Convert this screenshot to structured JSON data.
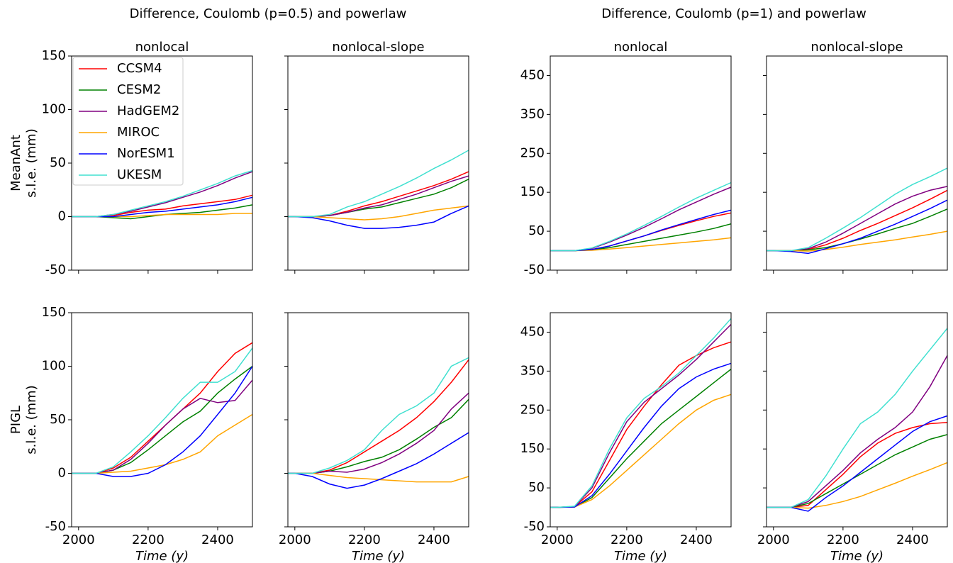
{
  "suptitles": [
    "Difference, Coulomb (p=0.5) and powerlaw",
    "Difference, Coulomb (p=1) and powerlaw"
  ],
  "chart_data": [
    {
      "type": "line",
      "title": "nonlocal",
      "ylabel": [
        "MeanAnt",
        "s.l.e. (mm)"
      ],
      "legend": "upper left",
      "x": [
        1980,
        2000,
        2050,
        2100,
        2150,
        2200,
        2250,
        2300,
        2350,
        2400,
        2450,
        2500
      ],
      "xlim": [
        1980,
        2500
      ],
      "xticks": [
        2000,
        2200,
        2400
      ],
      "show_xticklabels": false,
      "ylim": [
        -50,
        150
      ],
      "yticks": [
        -50,
        0,
        50,
        100,
        150
      ],
      "show_yticklabels": true,
      "series": [
        {
          "name": "CCSM4",
          "color": "#ff0000",
          "values": [
            0,
            0,
            0,
            1,
            4,
            6,
            7,
            10,
            12,
            14,
            16,
            20
          ]
        },
        {
          "name": "CESM2",
          "color": "#008000",
          "values": [
            0,
            0,
            0,
            -1,
            -2,
            0,
            2,
            3,
            4,
            6,
            8,
            11
          ]
        },
        {
          "name": "HadGEM2",
          "color": "#800080",
          "values": [
            0,
            0,
            0,
            2,
            5,
            9,
            13,
            18,
            23,
            29,
            36,
            42
          ]
        },
        {
          "name": "MIROC",
          "color": "#ffa500",
          "values": [
            0,
            0,
            0,
            0,
            0,
            1,
            2,
            2,
            2,
            2,
            3,
            3
          ]
        },
        {
          "name": "NorESM1",
          "color": "#0000ff",
          "values": [
            0,
            0,
            0,
            0,
            2,
            4,
            5,
            7,
            9,
            11,
            14,
            18
          ]
        },
        {
          "name": "UKESM",
          "color": "#40e0d0",
          "values": [
            0,
            0,
            0,
            2,
            6,
            10,
            14,
            19,
            25,
            31,
            38,
            43
          ]
        }
      ]
    },
    {
      "type": "line",
      "title": "nonlocal-slope",
      "x": [
        1980,
        2000,
        2050,
        2100,
        2150,
        2200,
        2250,
        2300,
        2350,
        2400,
        2450,
        2500
      ],
      "xlim": [
        1980,
        2500
      ],
      "xticks": [
        2000,
        2200,
        2400
      ],
      "show_xticklabels": false,
      "ylim": [
        -50,
        150
      ],
      "yticks": [
        -50,
        0,
        50,
        100,
        150
      ],
      "show_yticklabels": false,
      "series": [
        {
          "color": "#ff0000",
          "values": [
            0,
            0,
            0,
            1,
            5,
            10,
            14,
            19,
            24,
            29,
            35,
            42
          ]
        },
        {
          "color": "#008000",
          "values": [
            0,
            0,
            0,
            1,
            4,
            7,
            9,
            13,
            17,
            21,
            27,
            35
          ]
        },
        {
          "color": "#800080",
          "values": [
            0,
            0,
            0,
            1,
            4,
            8,
            11,
            16,
            21,
            27,
            33,
            38
          ]
        },
        {
          "color": "#ffa500",
          "values": [
            0,
            0,
            0,
            -1,
            -2,
            -3,
            -2,
            0,
            3,
            6,
            8,
            10
          ]
        },
        {
          "color": "#0000ff",
          "values": [
            0,
            0,
            -1,
            -4,
            -8,
            -11,
            -11,
            -10,
            -8,
            -5,
            3,
            10
          ]
        },
        {
          "color": "#40e0d0",
          "values": [
            0,
            0,
            0,
            2,
            9,
            14,
            21,
            28,
            36,
            45,
            53,
            62
          ]
        }
      ]
    },
    {
      "type": "line",
      "title": "nonlocal",
      "x": [
        1980,
        2000,
        2050,
        2100,
        2150,
        2200,
        2250,
        2300,
        2350,
        2400,
        2450,
        2500
      ],
      "xlim": [
        1980,
        2500
      ],
      "xticks": [
        2000,
        2200,
        2400
      ],
      "show_xticklabels": false,
      "ylim": [
        -50,
        500
      ],
      "yticks": [
        -50,
        50,
        150,
        250,
        350,
        450
      ],
      "show_yticklabels": true,
      "series": [
        {
          "color": "#ff0000",
          "values": [
            0,
            0,
            0,
            3,
            12,
            25,
            38,
            52,
            65,
            77,
            88,
            97
          ]
        },
        {
          "color": "#008000",
          "values": [
            0,
            0,
            0,
            2,
            8,
            16,
            24,
            32,
            40,
            48,
            57,
            69
          ]
        },
        {
          "color": "#800080",
          "values": [
            0,
            0,
            0,
            6,
            22,
            40,
            60,
            82,
            105,
            125,
            145,
            163
          ]
        },
        {
          "color": "#ffa500",
          "values": [
            0,
            0,
            0,
            1,
            4,
            8,
            12,
            16,
            20,
            24,
            28,
            33
          ]
        },
        {
          "color": "#0000ff",
          "values": [
            0,
            0,
            0,
            3,
            12,
            25,
            38,
            53,
            67,
            80,
            93,
            104
          ]
        },
        {
          "color": "#40e0d0",
          "values": [
            0,
            0,
            0,
            7,
            24,
            43,
            65,
            88,
            112,
            135,
            155,
            175
          ]
        }
      ]
    },
    {
      "type": "line",
      "title": "nonlocal-slope",
      "x": [
        1980,
        2000,
        2050,
        2100,
        2150,
        2200,
        2250,
        2300,
        2350,
        2400,
        2450,
        2500
      ],
      "xlim": [
        1980,
        2500
      ],
      "xticks": [
        2000,
        2200,
        2400
      ],
      "show_xticklabels": false,
      "ylim": [
        -50,
        500
      ],
      "yticks": [
        -50,
        50,
        150,
        250,
        350,
        450
      ],
      "show_yticklabels": false,
      "series": [
        {
          "color": "#ff0000",
          "values": [
            0,
            0,
            0,
            3,
            15,
            32,
            52,
            70,
            90,
            110,
            132,
            155
          ]
        },
        {
          "color": "#008000",
          "values": [
            0,
            0,
            0,
            2,
            8,
            18,
            30,
            43,
            57,
            70,
            88,
            107
          ]
        },
        {
          "color": "#800080",
          "values": [
            0,
            0,
            0,
            5,
            22,
            45,
            70,
            95,
            120,
            140,
            155,
            165
          ]
        },
        {
          "color": "#ffa500",
          "values": [
            0,
            0,
            0,
            -1,
            3,
            9,
            16,
            22,
            28,
            35,
            42,
            50
          ]
        },
        {
          "color": "#0000ff",
          "values": [
            0,
            0,
            -2,
            -7,
            5,
            18,
            32,
            50,
            68,
            88,
            108,
            130
          ]
        },
        {
          "color": "#40e0d0",
          "values": [
            0,
            0,
            0,
            8,
            32,
            58,
            85,
            115,
            145,
            170,
            190,
            212
          ]
        }
      ]
    },
    {
      "type": "line",
      "ylabel": [
        "PIGL",
        "s.l.e. (mm)"
      ],
      "xlabel": "Time (y)",
      "x": [
        1980,
        2000,
        2050,
        2100,
        2150,
        2200,
        2250,
        2300,
        2350,
        2400,
        2450,
        2500
      ],
      "xlim": [
        1980,
        2500
      ],
      "xticks": [
        2000,
        2200,
        2400
      ],
      "show_xticklabels": true,
      "ylim": [
        -50,
        150
      ],
      "yticks": [
        -50,
        0,
        50,
        100,
        150
      ],
      "show_yticklabels": true,
      "series": [
        {
          "color": "#ff0000",
          "values": [
            0,
            0,
            0,
            5,
            15,
            30,
            45,
            60,
            75,
            95,
            112,
            122
          ]
        },
        {
          "color": "#008000",
          "values": [
            0,
            0,
            0,
            3,
            10,
            22,
            35,
            48,
            58,
            75,
            88,
            100
          ]
        },
        {
          "color": "#800080",
          "values": [
            0,
            0,
            0,
            3,
            13,
            28,
            45,
            60,
            70,
            66,
            68,
            87
          ]
        },
        {
          "color": "#ffa500",
          "values": [
            0,
            0,
            0,
            1,
            2,
            5,
            8,
            13,
            20,
            35,
            45,
            55
          ]
        },
        {
          "color": "#0000ff",
          "values": [
            0,
            0,
            0,
            -3,
            -3,
            0,
            8,
            20,
            35,
            55,
            75,
            100
          ]
        },
        {
          "color": "#40e0d0",
          "values": [
            0,
            0,
            0,
            6,
            20,
            35,
            52,
            70,
            85,
            85,
            95,
            117
          ]
        }
      ]
    },
    {
      "type": "line",
      "xlabel": "Time (y)",
      "x": [
        1980,
        2000,
        2050,
        2100,
        2150,
        2200,
        2250,
        2300,
        2350,
        2400,
        2450,
        2500
      ],
      "xlim": [
        1980,
        2500
      ],
      "xticks": [
        2000,
        2200,
        2400
      ],
      "show_xticklabels": true,
      "ylim": [
        -50,
        150
      ],
      "yticks": [
        -50,
        0,
        50,
        100,
        150
      ],
      "show_yticklabels": false,
      "series": [
        {
          "color": "#ff0000",
          "values": [
            0,
            0,
            0,
            3,
            10,
            20,
            30,
            40,
            52,
            67,
            85,
            106
          ]
        },
        {
          "color": "#008000",
          "values": [
            0,
            0,
            0,
            2,
            6,
            11,
            15,
            22,
            32,
            43,
            52,
            69
          ]
        },
        {
          "color": "#800080",
          "values": [
            0,
            0,
            0,
            2,
            1,
            4,
            10,
            18,
            28,
            40,
            60,
            75
          ]
        },
        {
          "color": "#ffa500",
          "values": [
            0,
            0,
            0,
            -2,
            -4,
            -5,
            -6,
            -7,
            -8,
            -8,
            -8,
            -3
          ]
        },
        {
          "color": "#0000ff",
          "values": [
            0,
            0,
            -3,
            -10,
            -14,
            -11,
            -5,
            2,
            9,
            18,
            28,
            38
          ]
        },
        {
          "color": "#40e0d0",
          "values": [
            0,
            0,
            0,
            5,
            12,
            22,
            40,
            55,
            63,
            75,
            100,
            108
          ]
        }
      ]
    },
    {
      "type": "line",
      "xlabel": "Time (y)",
      "x": [
        1980,
        2000,
        2050,
        2100,
        2150,
        2200,
        2250,
        2300,
        2350,
        2400,
        2450,
        2500
      ],
      "xlim": [
        1980,
        2500
      ],
      "xticks": [
        2000,
        2200,
        2400
      ],
      "show_xticklabels": true,
      "ylim": [
        -50,
        500
      ],
      "yticks": [
        -50,
        50,
        150,
        250,
        350,
        450
      ],
      "show_yticklabels": true,
      "series": [
        {
          "color": "#ff0000",
          "values": [
            0,
            0,
            2,
            40,
            120,
            200,
            260,
            315,
            365,
            390,
            410,
            425
          ]
        },
        {
          "color": "#008000",
          "values": [
            0,
            0,
            1,
            25,
            75,
            125,
            170,
            215,
            250,
            285,
            320,
            355
          ]
        },
        {
          "color": "#800080",
          "values": [
            0,
            0,
            2,
            50,
            140,
            220,
            270,
            305,
            340,
            380,
            425,
            470
          ]
        },
        {
          "color": "#ffa500",
          "values": [
            0,
            0,
            1,
            20,
            55,
            95,
            135,
            175,
            215,
            250,
            275,
            290
          ]
        },
        {
          "color": "#0000ff",
          "values": [
            0,
            0,
            1,
            30,
            85,
            145,
            205,
            260,
            305,
            335,
            355,
            370
          ]
        },
        {
          "color": "#40e0d0",
          "values": [
            0,
            0,
            3,
            55,
            150,
            230,
            280,
            310,
            345,
            390,
            435,
            485
          ]
        }
      ]
    },
    {
      "type": "line",
      "xlabel": "Time (y)",
      "x": [
        1980,
        2000,
        2050,
        2100,
        2150,
        2200,
        2250,
        2300,
        2350,
        2400,
        2450,
        2500
      ],
      "xlim": [
        1980,
        2500
      ],
      "xticks": [
        2000,
        2200,
        2400
      ],
      "show_xticklabels": true,
      "ylim": [
        -50,
        500
      ],
      "yticks": [
        -50,
        50,
        150,
        250,
        350,
        450
      ],
      "show_yticklabels": false,
      "series": [
        {
          "color": "#ff0000",
          "values": [
            0,
            0,
            0,
            5,
            45,
            85,
            130,
            165,
            190,
            205,
            215,
            218
          ]
        },
        {
          "color": "#008000",
          "values": [
            0,
            0,
            0,
            10,
            35,
            60,
            85,
            110,
            135,
            155,
            175,
            187
          ]
        },
        {
          "color": "#800080",
          "values": [
            0,
            0,
            0,
            15,
            55,
            95,
            140,
            175,
            205,
            245,
            310,
            390
          ]
        },
        {
          "color": "#ffa500",
          "values": [
            0,
            0,
            0,
            -2,
            5,
            15,
            28,
            45,
            62,
            80,
            97,
            115
          ]
        },
        {
          "color": "#0000ff",
          "values": [
            0,
            0,
            0,
            -10,
            25,
            55,
            90,
            125,
            160,
            195,
            220,
            235
          ]
        },
        {
          "color": "#40e0d0",
          "values": [
            0,
            0,
            0,
            20,
            80,
            150,
            215,
            245,
            290,
            350,
            405,
            460
          ]
        }
      ]
    }
  ]
}
